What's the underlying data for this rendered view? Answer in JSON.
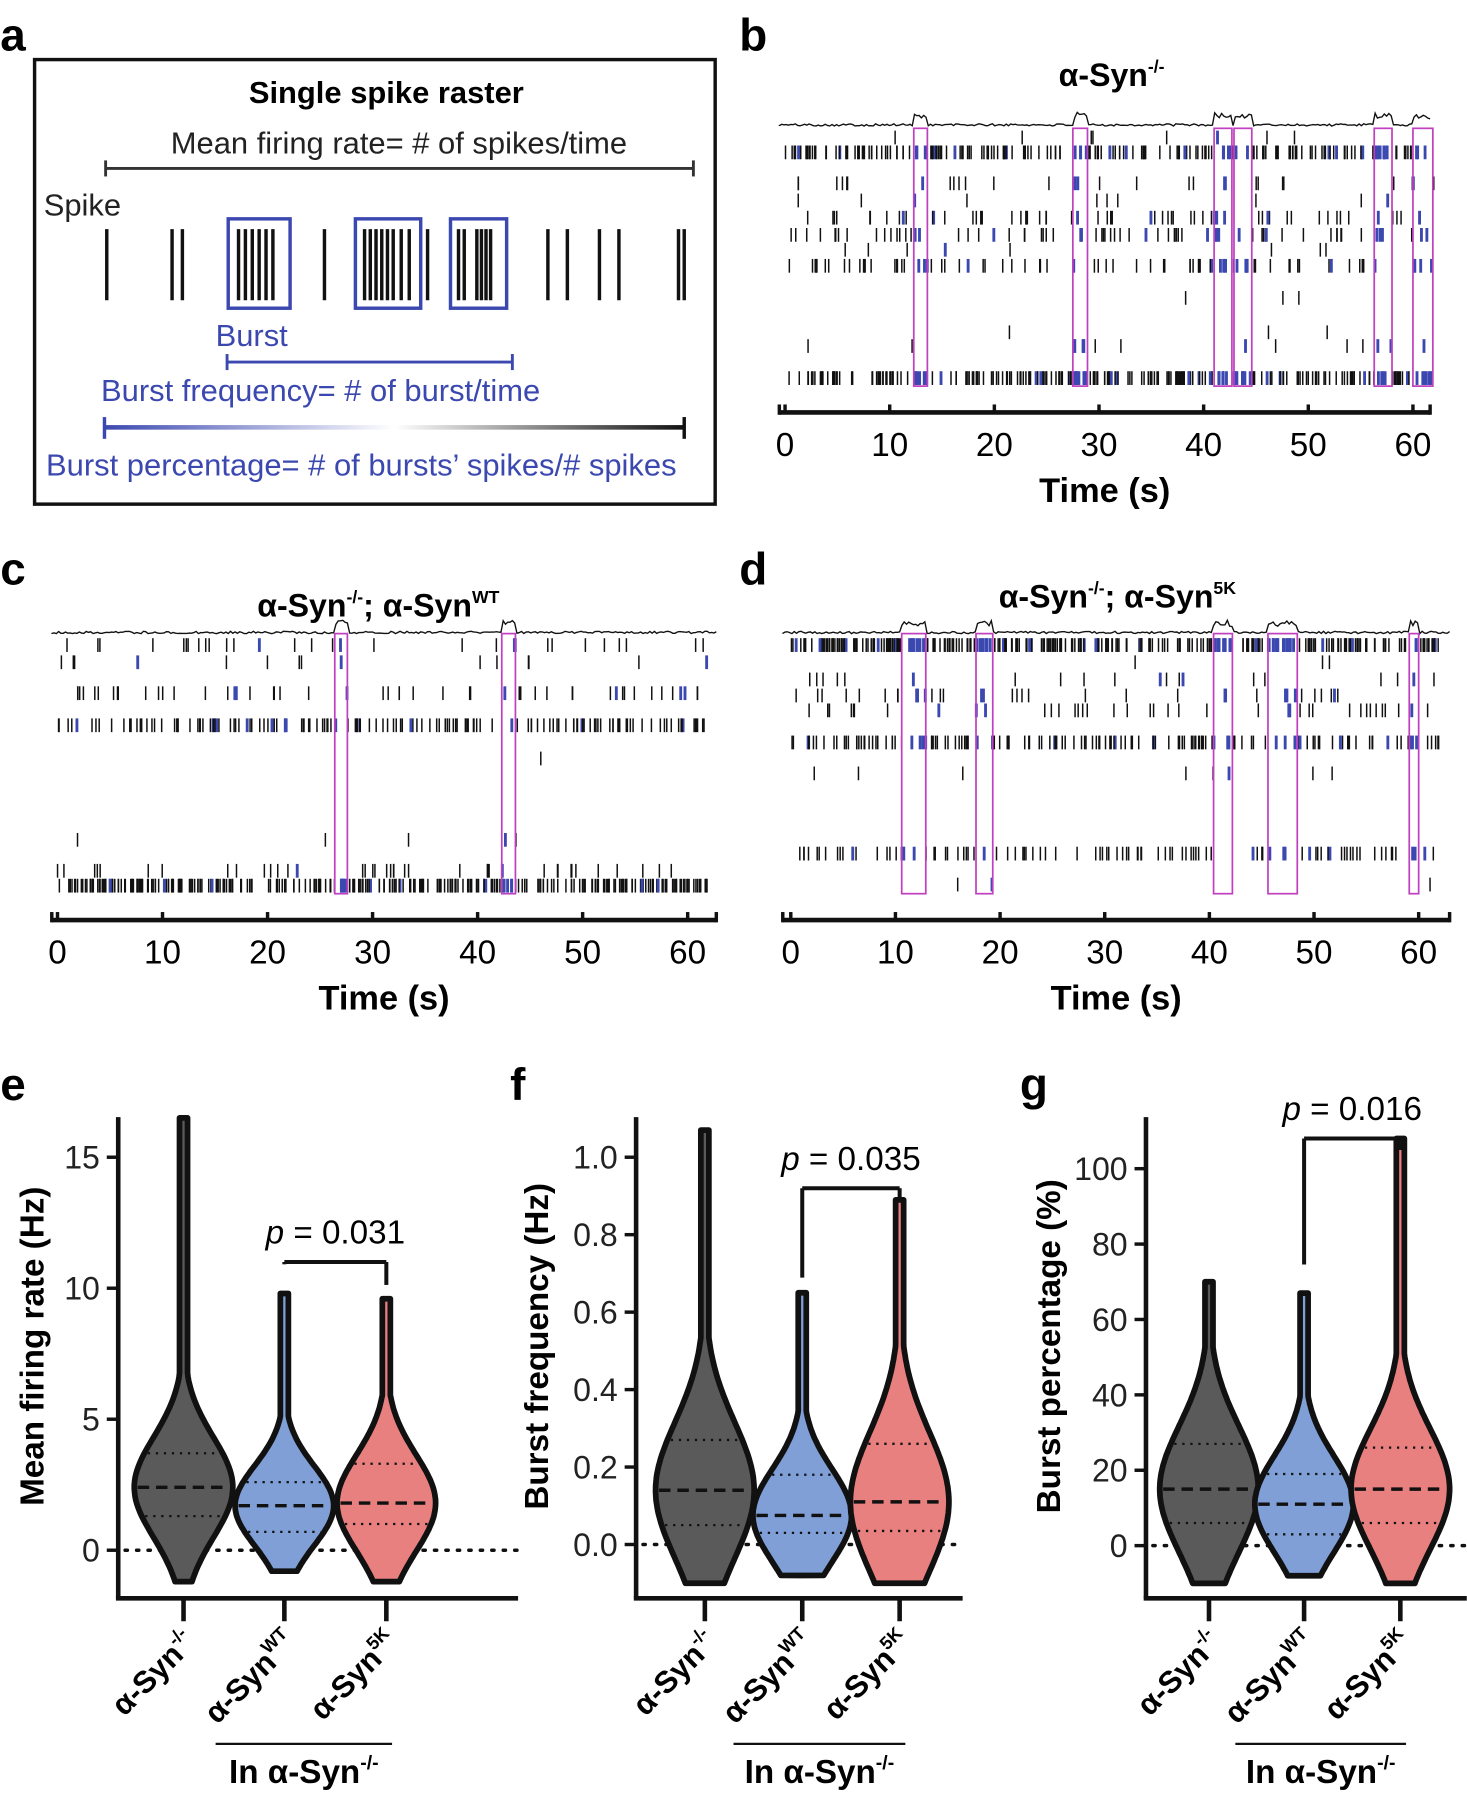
{
  "panel_labels": {
    "a": "a",
    "b": "b",
    "c": "c",
    "d": "d",
    "e": "e",
    "f": "f",
    "g": "g"
  },
  "colors": {
    "burst_blue": "#3b48b0",
    "window_magenta": "#c040c0",
    "ko_fill": "#5a5a5a",
    "wt_fill": "#7f9fd6",
    "k5_fill": "#e98080"
  },
  "schematic": {
    "title": "Single spike raster",
    "mean_rate": "Mean firing rate= # of spikes/time",
    "spike": "Spike",
    "burst": "Burst",
    "burst_freq": "Burst frequency= # of burst/time",
    "burst_pct": "Burst percentage= # of bursts’ spikes/# spikes"
  },
  "rasters": [
    {
      "label": "b",
      "title": [
        {
          "t": "α-Syn"
        },
        {
          "t": "-/-",
          "sup": true
        }
      ],
      "x_ticks": [
        "0",
        "10",
        "20",
        "30",
        "40",
        "50",
        "60"
      ],
      "xlabel": "Time (s)",
      "burst_windows": [
        [
          12.3,
          13.6
        ],
        [
          27.5,
          28.9
        ],
        [
          41.0,
          42.7
        ],
        [
          42.9,
          44.6
        ],
        [
          56.3,
          58.0
        ],
        [
          60.0,
          61.9
        ]
      ],
      "row_spike_counts": [
        8,
        200,
        30,
        10,
        60,
        70,
        8,
        80,
        3,
        3,
        15,
        250
      ]
    },
    {
      "label": "c",
      "title": [
        {
          "t": "α-Syn"
        },
        {
          "t": "-/-",
          "sup": true
        },
        {
          "t": "; α-Syn"
        },
        {
          "t": "WT",
          "sup": true
        }
      ],
      "x_ticks": [
        "0",
        "10",
        "20",
        "30",
        "40",
        "50",
        "60"
      ],
      "xlabel": "Time (s)",
      "burst_windows": [
        [
          26.4,
          27.6
        ],
        [
          42.3,
          43.6
        ]
      ],
      "row_spike_counts": [
        30,
        15,
        50,
        150,
        1,
        5,
        40,
        300
      ]
    },
    {
      "label": "d",
      "title": [
        {
          "t": "α-Syn"
        },
        {
          "t": "-/-",
          "sup": true
        },
        {
          "t": "; α-Syn"
        },
        {
          "t": "5K",
          "sup": true
        }
      ],
      "x_ticks": [
        "0",
        "10",
        "20",
        "30",
        "40",
        "50",
        "60"
      ],
      "xlabel": "Time (s)",
      "burst_windows": [
        [
          10.6,
          12.9
        ],
        [
          17.7,
          19.3
        ],
        [
          40.4,
          42.2
        ],
        [
          45.6,
          48.4
        ],
        [
          59.1,
          60.0
        ]
      ],
      "row_spike_counts": [
        300,
        3,
        20,
        35,
        40,
        150,
        8,
        100,
        3
      ]
    }
  ],
  "chart_data": [
    {
      "type": "violin",
      "panel": "e",
      "ylabel": "Mean firing rate (Hz)",
      "yticks": [
        "0",
        "5",
        "10",
        "15"
      ],
      "ytick_values": [
        0,
        5,
        10,
        15
      ],
      "ylim": [
        -2.5,
        17
      ],
      "categories": [
        {
          "base": "α-Syn",
          "sup": "-/-"
        },
        {
          "base": "α-Syn",
          "sup": "WT"
        },
        {
          "base": "α-Syn",
          "sup": "5K"
        }
      ],
      "group_label": {
        "base": "In α-Syn",
        "sup": "-/-"
      },
      "series": [
        {
          "name": "α-Syn-/-",
          "min": -1.2,
          "q1": 1.3,
          "median": 2.4,
          "q3": 3.7,
          "max": 16.5
        },
        {
          "name": "α-SynWT",
          "min": -0.8,
          "q1": 0.7,
          "median": 1.7,
          "q3": 2.6,
          "max": 9.8
        },
        {
          "name": "α-Syn5K",
          "min": -1.2,
          "q1": 1.0,
          "median": 1.8,
          "q3": 3.3,
          "max": 9.6
        }
      ],
      "comparison": {
        "groups": [
          1,
          2
        ],
        "p_prefix": "p",
        "p_text": " = 0.031",
        "y": 11.0
      }
    },
    {
      "type": "violin",
      "panel": "f",
      "ylabel": "Burst frequency (Hz)",
      "yticks": [
        "0.0",
        "0.2",
        "0.4",
        "0.6",
        "0.8",
        "1.0"
      ],
      "ytick_values": [
        0,
        0.2,
        0.4,
        0.6,
        0.8,
        1.0
      ],
      "ylim": [
        -0.15,
        1.12
      ],
      "categories": [
        {
          "base": "α-Syn",
          "sup": "-/-"
        },
        {
          "base": "α-Syn",
          "sup": "WT"
        },
        {
          "base": "α-Syn",
          "sup": "5K"
        }
      ],
      "group_label": {
        "base": "In α-Syn",
        "sup": "-/-"
      },
      "series": [
        {
          "name": "α-Syn-/-",
          "min": -0.1,
          "q1": 0.05,
          "median": 0.14,
          "q3": 0.27,
          "max": 1.07
        },
        {
          "name": "α-SynWT",
          "min": -0.08,
          "q1": 0.03,
          "median": 0.075,
          "q3": 0.18,
          "max": 0.65
        },
        {
          "name": "α-Syn5K",
          "min": -0.1,
          "q1": 0.035,
          "median": 0.11,
          "q3": 0.26,
          "max": 0.89
        }
      ],
      "comparison": {
        "groups": [
          1,
          2
        ],
        "p_prefix": "p",
        "p_text": " = 0.035",
        "y": 0.92
      }
    },
    {
      "type": "violin",
      "panel": "g",
      "ylabel": "Burst percentage (%)",
      "yticks": [
        "0",
        "20",
        "40",
        "60",
        "80",
        "100"
      ],
      "ytick_values": [
        0,
        20,
        40,
        60,
        80,
        100
      ],
      "ylim": [
        -14,
        112
      ],
      "categories": [
        {
          "base": "α-Syn",
          "sup": "-/-"
        },
        {
          "base": "α-Syn",
          "sup": "WT"
        },
        {
          "base": "α-Syn",
          "sup": "5K"
        }
      ],
      "group_label": {
        "base": "In α-Syn",
        "sup": "-/-"
      },
      "series": [
        {
          "name": "α-Syn-/-",
          "min": -10,
          "q1": 6,
          "median": 15,
          "q3": 27,
          "max": 70
        },
        {
          "name": "α-SynWT",
          "min": -8,
          "q1": 3,
          "median": 11,
          "q3": 19,
          "max": 67
        },
        {
          "name": "α-Syn5K",
          "min": -10,
          "q1": 6,
          "median": 15,
          "q3": 26,
          "max": 108
        }
      ],
      "comparison": {
        "groups": [
          1,
          2
        ],
        "p_prefix": "p",
        "p_text": " = 0.016",
        "y": 108
      }
    }
  ]
}
